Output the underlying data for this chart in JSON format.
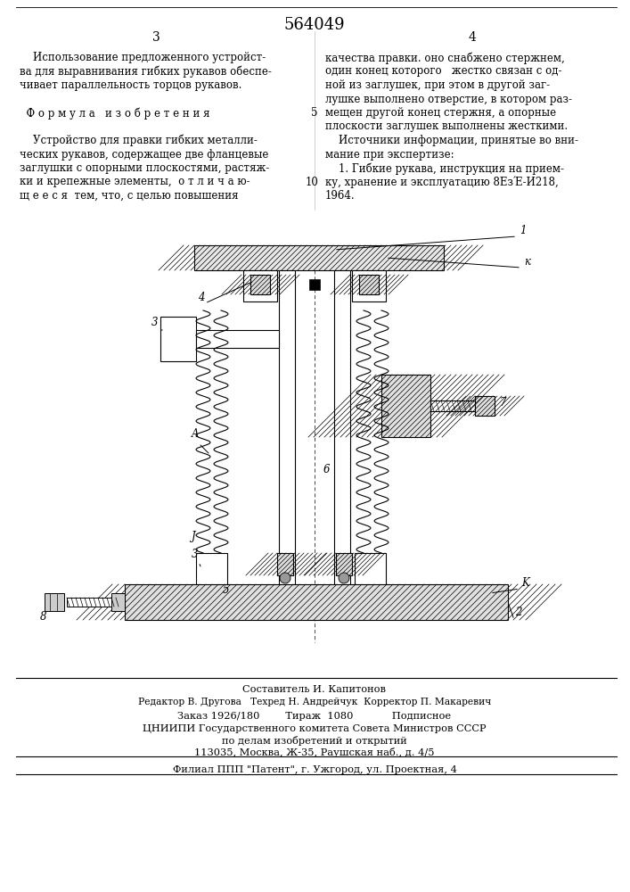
{
  "bg_color": "#ffffff",
  "title_number": "564049",
  "col_left_number": "3",
  "col_right_number": "4",
  "col_left_text": [
    "    Использование предложенного устройст-",
    "ва для выравнивания гибких рукавов обеспе-",
    "чивает параллельность торцов рукавов.",
    "",
    "  Ф о р м у л а   и з о б р е т е н и я",
    "",
    "    Устройство для правки гибких металли-",
    "ческих рукавов, содержащее две фланцевые",
    "заглушки с опорными плоскостями, растяж-",
    "ки и крепежные элементы,  о т л и ч а ю-",
    "щ е е с я  тем, что, с целью повышения"
  ],
  "col_right_text": [
    "качества правки. оно снабжено стержнем,",
    "один конец которого   жестко связан с од-",
    "ной из заглушек, при этом в другой заг-",
    "лушке выполнено отверстие, в котором раз-",
    "мещен другой конец стержня, а опорные",
    "плоскости заглушек выполнены жесткими.",
    "    Источники информации, принятые во вни-",
    "мание при экспертизе:",
    "    1. Гибкие рукава, инструкция на прием-",
    "ку, хранение и эксплуатацию 8ЕзΈ-И218,",
    "1964."
  ],
  "line5_right": "5",
  "line10_right": "10",
  "footer_line1": "Составитель И. Капитонов",
  "footer_line2": "Редактор В. Другова   Техред Н. Андрейчук  Корректор П. Макаревич",
  "footer_line3": "Заказ 1926/180        Тираж  1080            Подписное",
  "footer_line4": "ЦНИИПИ Государственного комитета Совета Министров СССР",
  "footer_line5": "по делам изобретений и открытий",
  "footer_line6": "113035, Москва, Ж-35, Раушская наб., д. 4/5",
  "footer_line7": "Филиал ППП \"Патент\", г. Ужгород, ул. Проектная, 4"
}
